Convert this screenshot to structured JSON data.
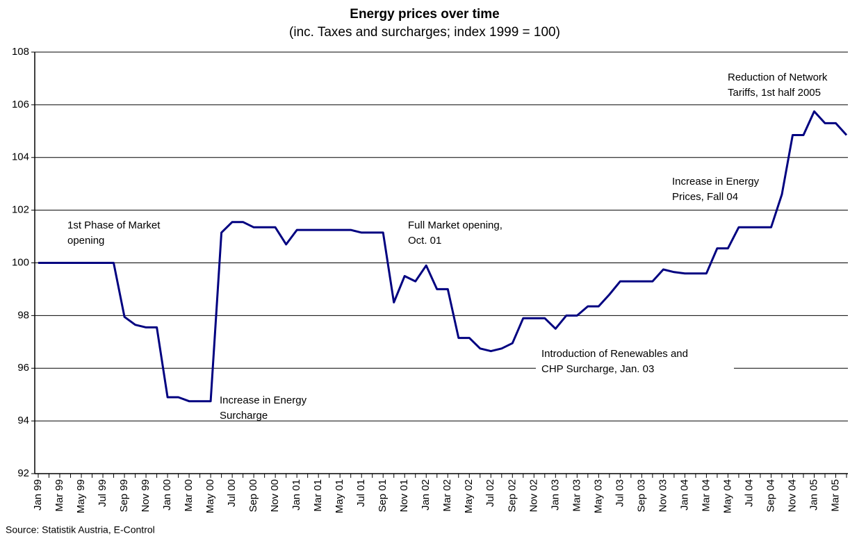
{
  "chart_data": {
    "type": "line",
    "title": "Energy prices over time",
    "subtitle": "(inc. Taxes and surcharges; index 1999 = 100)",
    "source": "Source: Statistik Austria, E-Control",
    "categories": [
      "Jan 99",
      null,
      "Mar 99",
      null,
      "May 99",
      null,
      "Jul 99",
      null,
      "Sep 99",
      null,
      "Nov 99",
      null,
      "Jan 00",
      null,
      "Mar 00",
      null,
      "May 00",
      null,
      "Jul 00",
      null,
      "Sep 00",
      null,
      "Nov 00",
      null,
      "Jan 01",
      null,
      "Mar 01",
      null,
      "May 01",
      null,
      "Jul 01",
      null,
      "Sep 01",
      null,
      "Nov 01",
      null,
      "Jan 02",
      null,
      "Mar 02",
      null,
      "May 02",
      null,
      "Jul 02",
      null,
      "Sep 02",
      null,
      "Nov 02",
      null,
      "Jan 03",
      null,
      "Mar 03",
      null,
      "May 03",
      null,
      "Jul 03",
      null,
      "Sep 03",
      null,
      "Nov 03",
      null,
      "Jan 04",
      null,
      "Mar 04",
      null,
      "May 04",
      null,
      "Jul 04",
      null,
      "Sep 04",
      null,
      "Nov 04",
      null,
      "Jan 05",
      null,
      "Mar 05",
      null
    ],
    "values": [
      100,
      100,
      100,
      100,
      100,
      100,
      100,
      100,
      97.95,
      97.65,
      97.55,
      97.55,
      94.9,
      94.9,
      94.75,
      94.75,
      94.75,
      101.15,
      101.55,
      101.55,
      101.35,
      101.35,
      101.35,
      100.7,
      101.25,
      101.25,
      101.25,
      101.25,
      101.25,
      101.25,
      101.15,
      101.15,
      101.15,
      98.5,
      99.5,
      99.3,
      99.9,
      99.0,
      99.0,
      97.15,
      97.15,
      96.75,
      96.65,
      96.75,
      96.95,
      97.9,
      97.9,
      97.9,
      97.5,
      98.0,
      98.0,
      98.35,
      98.35,
      98.8,
      99.3,
      99.3,
      99.3,
      99.3,
      99.75,
      99.65,
      99.6,
      99.6,
      99.6,
      100.55,
      100.55,
      101.35,
      101.35,
      101.35,
      101.35,
      102.6,
      104.85,
      104.85,
      105.75,
      105.3,
      105.3,
      104.85
    ],
    "color": "#000080",
    "ylim": [
      92,
      108
    ],
    "yticks": [
      92,
      94,
      96,
      98,
      100,
      102,
      104,
      106,
      108
    ],
    "grid": true,
    "annotations": [
      [
        "1st Phase of Market",
        "opening"
      ],
      [
        "Increase in Energy",
        "Surcharge"
      ],
      [
        "Full Market opening,",
        "Oct. 01"
      ],
      [
        "Introduction of Renewables and",
        "CHP Surcharge, Jan. 03"
      ],
      [
        "Increase in Energy",
        "Prices, Fall 04"
      ],
      [
        "Reduction of Network",
        "Tariffs, 1st half 2005"
      ]
    ]
  }
}
